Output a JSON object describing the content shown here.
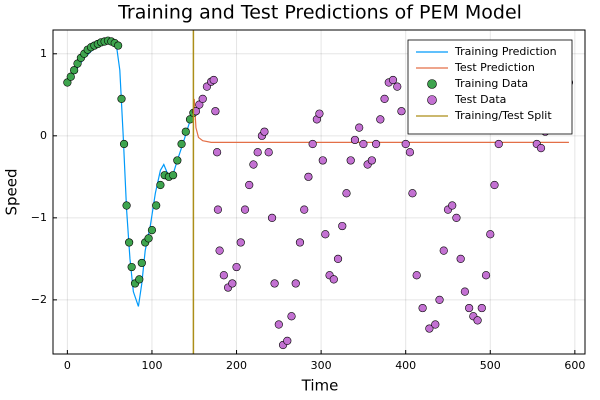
{
  "chart_data": {
    "type": "line",
    "title": "Training and Test Predictions of PEM Model",
    "x_label": "Time",
    "y_label": "Speed",
    "xlim": [
      -17,
      612
    ],
    "ylim": [
      -2.66,
      1.29
    ],
    "xticks": [
      0,
      100,
      200,
      300,
      400,
      500,
      600
    ],
    "yticks": [
      {
        "value": -2,
        "label": "−2"
      },
      {
        "value": -1,
        "label": "−1"
      },
      0,
      1
    ],
    "grid": true,
    "legend": "top-right",
    "series": [
      {
        "name": "Training Prediction",
        "color": "#009afa",
        "kind": "line",
        "x": [
          0,
          10,
          20,
          30,
          40,
          50,
          58,
          62,
          66,
          70,
          74,
          78,
          84,
          88,
          92,
          98,
          104,
          110,
          114,
          118,
          124,
          130,
          138,
          144,
          149
        ],
        "values": [
          0.62,
          0.8,
          0.95,
          1.05,
          1.12,
          1.15,
          1.1,
          0.8,
          0.0,
          -0.9,
          -1.5,
          -1.9,
          -2.08,
          -1.8,
          -1.4,
          -1.1,
          -0.7,
          -0.42,
          -0.35,
          -0.45,
          -0.5,
          -0.3,
          -0.05,
          0.15,
          0.3
        ]
      },
      {
        "name": "Test Prediction",
        "color": "#e36f47",
        "kind": "line",
        "x": [
          150,
          152,
          155,
          160,
          170,
          593
        ],
        "values": [
          0.45,
          0.1,
          -0.02,
          -0.06,
          -0.08,
          -0.08
        ]
      },
      {
        "name": "Training Data",
        "color": "#3ea44e",
        "kind": "scatter",
        "x": [
          0,
          4,
          8,
          12,
          16,
          20,
          24,
          28,
          32,
          36,
          40,
          44,
          48,
          52,
          56,
          60,
          64,
          67,
          70,
          73,
          76,
          80,
          85,
          88,
          92,
          96,
          100,
          105,
          110,
          115,
          120,
          125,
          130,
          135,
          140,
          145,
          149
        ],
        "values": [
          0.65,
          0.72,
          0.8,
          0.88,
          0.95,
          1.0,
          1.05,
          1.08,
          1.1,
          1.12,
          1.14,
          1.15,
          1.16,
          1.15,
          1.13,
          1.1,
          0.45,
          -0.1,
          -0.85,
          -1.3,
          -1.6,
          -1.8,
          -1.75,
          -1.55,
          -1.3,
          -1.25,
          -1.15,
          -0.85,
          -0.6,
          -0.48,
          -0.5,
          -0.48,
          -0.3,
          -0.1,
          0.05,
          0.2,
          0.28
        ]
      },
      {
        "name": "Test Data",
        "color": "#c371d2",
        "kind": "scatter",
        "x": [
          152,
          156,
          160,
          165,
          170,
          173,
          175,
          177,
          178,
          180,
          185,
          190,
          195,
          200,
          205,
          210,
          215,
          220,
          225,
          230,
          233,
          238,
          242,
          245,
          250,
          255,
          260,
          265,
          270,
          275,
          280,
          285,
          290,
          295,
          298,
          302,
          305,
          310,
          315,
          320,
          325,
          330,
          335,
          340,
          345,
          350,
          355,
          360,
          365,
          370,
          375,
          380,
          385,
          390,
          395,
          400,
          405,
          408,
          413,
          420,
          428,
          435,
          440,
          445,
          450,
          455,
          460,
          465,
          470,
          475,
          480,
          485,
          490,
          495,
          500,
          505,
          510,
          515,
          520,
          525,
          530,
          535,
          540,
          545,
          550,
          555,
          560,
          565,
          570,
          575,
          580,
          585,
          593
        ],
        "values": [
          0.3,
          0.38,
          0.45,
          0.6,
          0.66,
          0.68,
          0.3,
          -0.2,
          -0.9,
          -1.4,
          -1.7,
          -1.85,
          -1.8,
          -1.6,
          -1.3,
          -0.9,
          -0.6,
          -0.35,
          -0.2,
          0.0,
          0.05,
          -0.2,
          -1.0,
          -1.8,
          -2.3,
          -2.55,
          -2.5,
          -2.2,
          -1.8,
          -1.3,
          -0.9,
          -0.5,
          -0.1,
          0.2,
          0.27,
          -0.3,
          -1.2,
          -1.7,
          -1.75,
          -1.5,
          -1.1,
          -0.7,
          -0.3,
          -0.05,
          0.1,
          -0.1,
          -0.35,
          -0.3,
          -0.1,
          0.2,
          0.45,
          0.65,
          0.68,
          0.6,
          0.3,
          -0.1,
          -0.2,
          -0.7,
          -1.7,
          -2.1,
          -2.35,
          -2.3,
          -2.0,
          -1.4,
          -0.9,
          -0.85,
          -1.0,
          -1.5,
          -1.9,
          -2.1,
          -2.2,
          -2.25,
          -2.1,
          -1.7,
          -1.2,
          -0.6,
          -0.1,
          0.15,
          0.4,
          0.55,
          0.3,
          0.15,
          0.4,
          0.55,
          0.25,
          -0.1,
          -0.15,
          0.05,
          0.35,
          0.55,
          0.65,
          0.55,
          0.65
        ]
      },
      {
        "name": "Training/Test Split",
        "color": "#ac8e18",
        "kind": "vline",
        "x": [
          149
        ]
      }
    ]
  }
}
